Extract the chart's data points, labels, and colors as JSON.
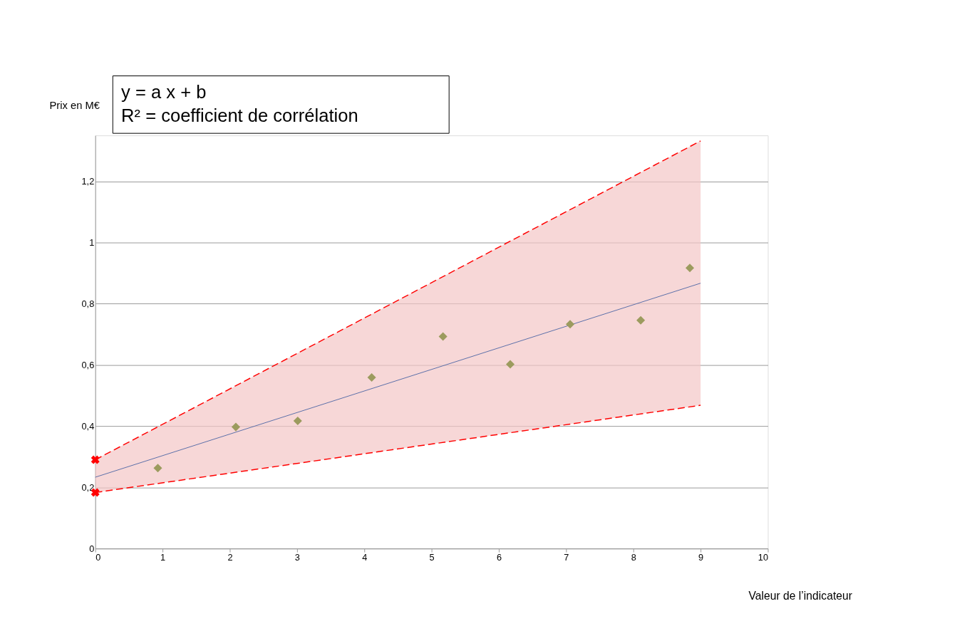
{
  "chart_data": {
    "type": "scatter",
    "xlabel": "Valeur de l’indicateur",
    "ylabel": "Prix en M€",
    "annotations": [
      "y = a x + b",
      "R² = coefficient de corrélation"
    ],
    "xlim": [
      0,
      10
    ],
    "xticks": [
      0,
      1,
      2,
      3,
      4,
      5,
      6,
      7,
      8,
      9,
      10
    ],
    "ylim": [
      0,
      1.35
    ],
    "yticks": [
      0,
      {
        "value": 0.2,
        "label": "0,2"
      },
      {
        "value": 0.4,
        "label": "0,4"
      },
      {
        "value": 0.6,
        "label": "0,6"
      },
      {
        "value": 0.8,
        "label": "0,8"
      },
      1,
      {
        "value": 1.2,
        "label": "1,2"
      }
    ],
    "grid": "y",
    "legend": false,
    "series": [
      {
        "type": "line",
        "color": "#5a6ea8",
        "line_style": "solid",
        "x": [
          0,
          9
        ],
        "values": [
          0.233,
          0.867
        ],
        "lower": [
          0.183,
          0.468
        ],
        "upper": [
          0.29,
          1.332
        ]
      },
      {
        "type": "line",
        "color": "#ff0000",
        "line_style": "dashed",
        "x": [
          0,
          9
        ],
        "values": [
          0.29,
          1.332
        ]
      },
      {
        "type": "line",
        "color": "#ff0000",
        "line_style": "dashed",
        "x": [
          0,
          9
        ],
        "values": [
          0.183,
          0.468
        ]
      },
      {
        "type": "scatter",
        "color": "#9c9b5e",
        "marker": "diamond",
        "x": [
          0.93,
          2.09,
          3.01,
          4.11,
          5.17,
          6.17,
          7.06,
          8.11,
          8.84
        ],
        "values": [
          0.263,
          0.397,
          0.417,
          0.559,
          0.693,
          0.602,
          0.733,
          0.746,
          0.917
        ]
      },
      {
        "type": "scatter",
        "color": "#ff0000",
        "marker": "cross",
        "x": [
          0,
          0
        ],
        "values": [
          0.29,
          0.183
        ]
      }
    ]
  }
}
